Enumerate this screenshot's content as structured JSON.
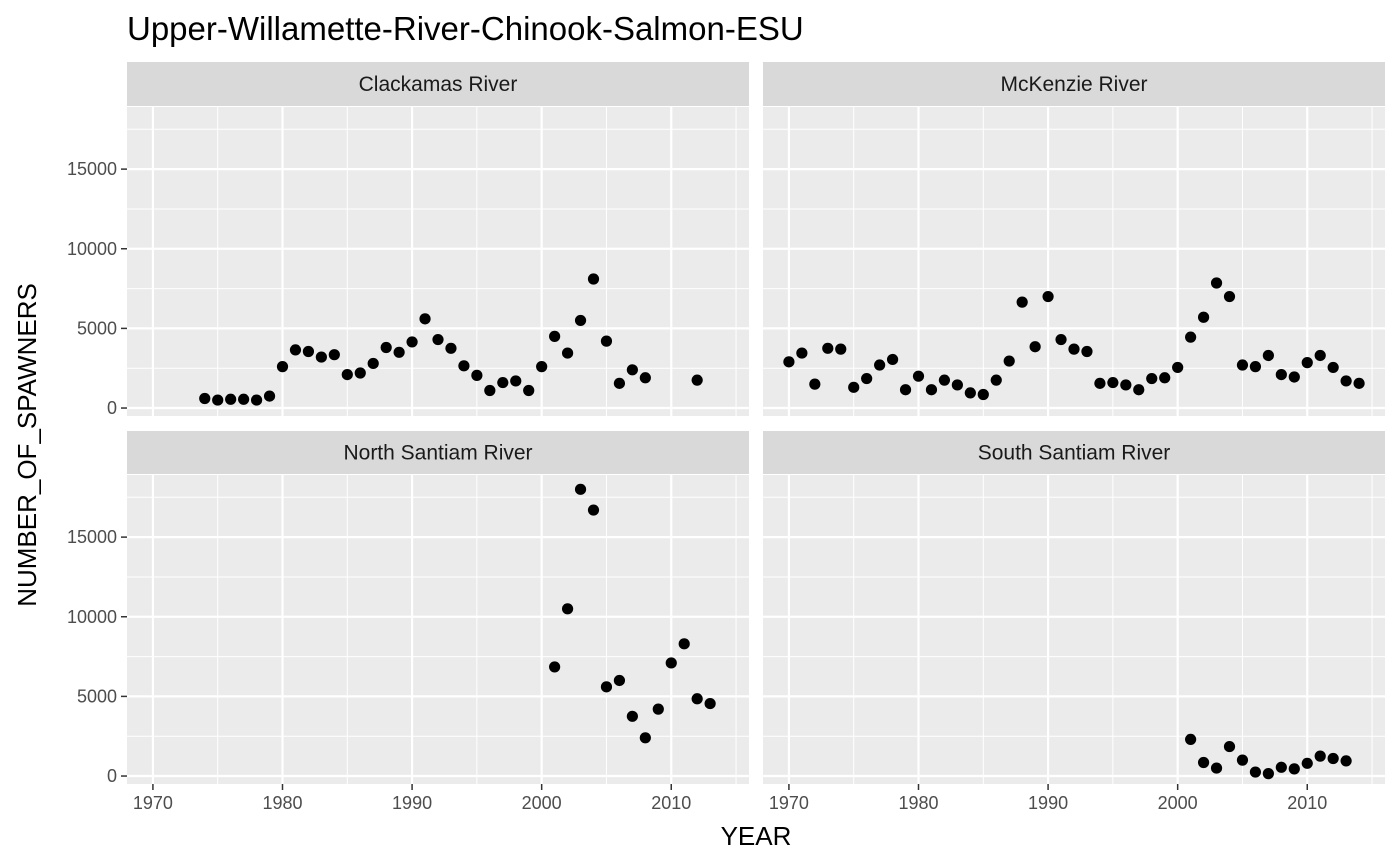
{
  "chart_data": {
    "type": "scatter",
    "title": "Upper-Willamette-River-Chinook-Salmon-ESU",
    "xlabel": "YEAR",
    "ylabel": "NUMBER_OF_SPAWNERS",
    "xlim": [
      1968,
      2016
    ],
    "ylim": [
      -500,
      18900
    ],
    "x_ticks": [
      1970,
      1980,
      1990,
      2000,
      2010
    ],
    "y_ticks": [
      0,
      5000,
      10000,
      15000
    ],
    "grid": true,
    "point_color": "#000000",
    "panel_background": "#ebebeb",
    "strip_background": "#d9d9d9",
    "panels": [
      {
        "name": "Clackamas River",
        "points": [
          [
            1974,
            600
          ],
          [
            1975,
            500
          ],
          [
            1976,
            550
          ],
          [
            1977,
            550
          ],
          [
            1978,
            500
          ],
          [
            1979,
            750
          ],
          [
            1980,
            2600
          ],
          [
            1981,
            3650
          ],
          [
            1982,
            3550
          ],
          [
            1983,
            3200
          ],
          [
            1984,
            3350
          ],
          [
            1985,
            2100
          ],
          [
            1986,
            2200
          ],
          [
            1987,
            2800
          ],
          [
            1988,
            3800
          ],
          [
            1989,
            3500
          ],
          [
            1990,
            4150
          ],
          [
            1991,
            5600
          ],
          [
            1992,
            4300
          ],
          [
            1993,
            3750
          ],
          [
            1994,
            2650
          ],
          [
            1995,
            2050
          ],
          [
            1996,
            1100
          ],
          [
            1997,
            1600
          ],
          [
            1998,
            1700
          ],
          [
            1999,
            1100
          ],
          [
            2000,
            2600
          ],
          [
            2001,
            4500
          ],
          [
            2002,
            3450
          ],
          [
            2003,
            5500
          ],
          [
            2004,
            8100
          ],
          [
            2005,
            4200
          ],
          [
            2006,
            1550
          ],
          [
            2007,
            2400
          ],
          [
            2008,
            1900
          ],
          [
            2012,
            1750
          ]
        ]
      },
      {
        "name": "McKenzie River",
        "points": [
          [
            1970,
            2900
          ],
          [
            1971,
            3450
          ],
          [
            1972,
            1500
          ],
          [
            1973,
            3750
          ],
          [
            1974,
            3700
          ],
          [
            1975,
            1300
          ],
          [
            1976,
            1850
          ],
          [
            1977,
            2700
          ],
          [
            1978,
            3050
          ],
          [
            1979,
            1150
          ],
          [
            1980,
            2000
          ],
          [
            1981,
            1150
          ],
          [
            1982,
            1750
          ],
          [
            1983,
            1450
          ],
          [
            1984,
            950
          ],
          [
            1985,
            850
          ],
          [
            1986,
            1750
          ],
          [
            1987,
            2950
          ],
          [
            1988,
            6650
          ],
          [
            1989,
            3850
          ],
          [
            1990,
            7000
          ],
          [
            1991,
            4300
          ],
          [
            1992,
            3700
          ],
          [
            1993,
            3550
          ],
          [
            1994,
            1550
          ],
          [
            1995,
            1600
          ],
          [
            1996,
            1450
          ],
          [
            1997,
            1150
          ],
          [
            1998,
            1850
          ],
          [
            1999,
            1900
          ],
          [
            2000,
            2550
          ],
          [
            2001,
            4450
          ],
          [
            2002,
            5700
          ],
          [
            2003,
            7850
          ],
          [
            2004,
            7000
          ],
          [
            2005,
            2700
          ],
          [
            2006,
            2600
          ],
          [
            2007,
            3300
          ],
          [
            2008,
            2100
          ],
          [
            2009,
            1950
          ],
          [
            2010,
            2850
          ],
          [
            2011,
            3300
          ],
          [
            2012,
            2550
          ],
          [
            2013,
            1700
          ],
          [
            2014,
            1550
          ]
        ]
      },
      {
        "name": "North Santiam River",
        "points": [
          [
            2001,
            6850
          ],
          [
            2002,
            10500
          ],
          [
            2003,
            18000
          ],
          [
            2004,
            16700
          ],
          [
            2005,
            5600
          ],
          [
            2006,
            6000
          ],
          [
            2007,
            3750
          ],
          [
            2008,
            2400
          ],
          [
            2009,
            4200
          ],
          [
            2010,
            7100
          ],
          [
            2011,
            8300
          ],
          [
            2012,
            4850
          ],
          [
            2013,
            4550
          ]
        ]
      },
      {
        "name": "South Santiam River",
        "points": [
          [
            2001,
            2300
          ],
          [
            2002,
            850
          ],
          [
            2003,
            500
          ],
          [
            2004,
            1850
          ],
          [
            2005,
            1000
          ],
          [
            2006,
            250
          ],
          [
            2007,
            150
          ],
          [
            2008,
            550
          ],
          [
            2009,
            450
          ],
          [
            2010,
            800
          ],
          [
            2011,
            1250
          ],
          [
            2012,
            1100
          ],
          [
            2013,
            950
          ]
        ]
      }
    ]
  }
}
